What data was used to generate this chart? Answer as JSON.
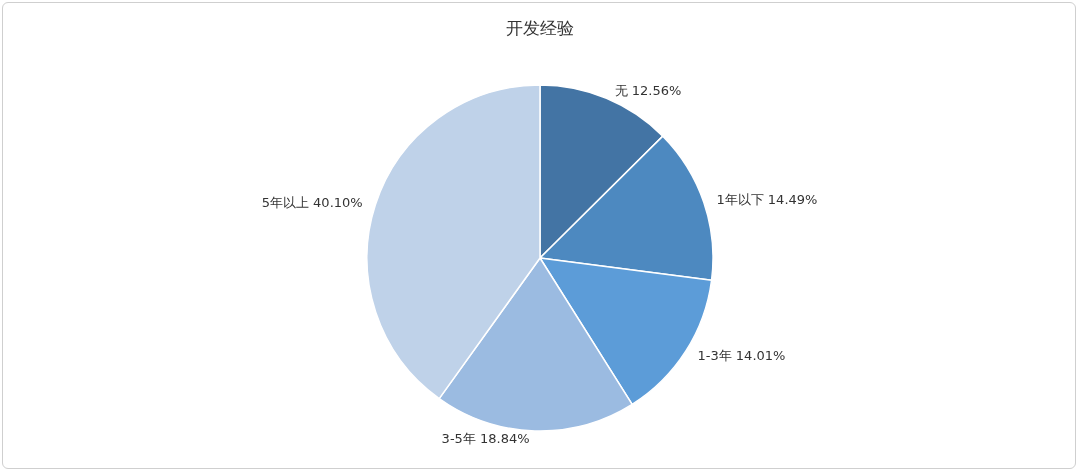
{
  "chart_data": {
    "type": "pie",
    "title": "开发经验",
    "categories": [
      "无",
      "1年以下",
      "1-3年",
      "3-5年",
      "5年以上"
    ],
    "values": [
      12.56,
      14.49,
      14.01,
      18.84,
      40.1
    ],
    "value_labels": [
      "12.56%",
      "14.49%",
      "14.01%",
      "18.84%",
      "40.10%"
    ],
    "colors": [
      "#4374a4",
      "#4d89c0",
      "#5c9cd8",
      "#9bbbe1",
      "#bfd2e9"
    ]
  }
}
